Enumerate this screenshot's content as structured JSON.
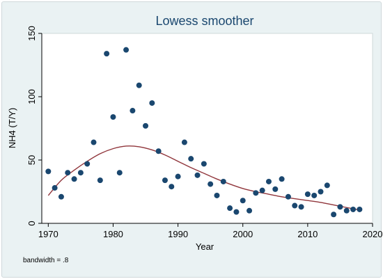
{
  "chart_data": {
    "type": "scatter",
    "title": "Lowess smoother",
    "xlabel": "Year",
    "ylabel": "NH4 (T/Y)",
    "note": "bandwidth = .8",
    "xlim": [
      1969,
      2020
    ],
    "ylim": [
      0,
      150
    ],
    "xticks": [
      1970,
      1980,
      1990,
      2000,
      2010,
      2020
    ],
    "yticks": [
      0,
      50,
      100,
      150
    ],
    "grid": false,
    "legend": "none",
    "colors": {
      "background": "#eaf2f3",
      "plot_area": "#ffffff",
      "markers": "#1a476f",
      "smoother": "#90353b",
      "title": "#1a476f"
    },
    "series": [
      {
        "type": "scatter",
        "x": [
          1970,
          1971,
          1972,
          1973,
          1974,
          1975,
          1976,
          1977,
          1978,
          1979,
          1980,
          1981,
          1982,
          1983,
          1984,
          1985,
          1986,
          1987,
          1988,
          1989,
          1990,
          1991,
          1992,
          1993,
          1994,
          1995,
          1996,
          1997,
          1998,
          1999,
          2000,
          2001,
          2002,
          2003,
          2004,
          2005,
          2006,
          2007,
          2008,
          2009,
          2010,
          2011,
          2012,
          2013,
          2014,
          2015,
          2016,
          2017,
          2018
        ],
        "y": [
          41,
          28,
          21,
          40,
          35,
          40,
          47,
          64,
          34,
          134,
          84,
          40,
          137,
          89,
          109,
          77,
          95,
          57,
          34,
          29,
          37,
          64,
          51,
          38,
          47,
          31,
          22,
          33,
          12,
          9,
          18,
          10,
          24,
          26,
          33,
          27,
          35,
          21,
          14,
          13,
          23,
          22,
          25,
          30,
          7,
          13,
          10,
          11,
          11
        ]
      },
      {
        "type": "line",
        "x": [
          1970,
          1972,
          1974,
          1976,
          1978,
          1980,
          1982,
          1984,
          1986,
          1988,
          1990,
          1992,
          1994,
          1996,
          1998,
          2000,
          2002,
          2004,
          2006,
          2008,
          2010,
          2012,
          2014,
          2016,
          2018
        ],
        "y": [
          22,
          34,
          42,
          49,
          55,
          59,
          61,
          60.5,
          58,
          54,
          49,
          44,
          39.5,
          35,
          31,
          27.5,
          25,
          23,
          21,
          19.5,
          18,
          16.5,
          14.5,
          12.5,
          10.5
        ]
      }
    ]
  }
}
